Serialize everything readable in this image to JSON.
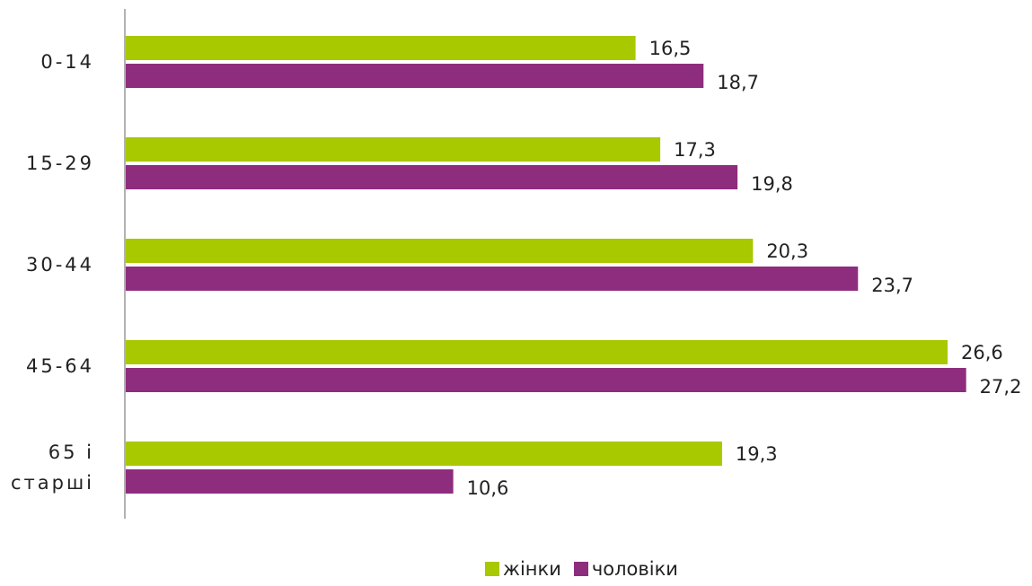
{
  "chart_data": {
    "type": "bar",
    "orientation": "horizontal",
    "categories": [
      [
        "0-14"
      ],
      [
        "15-29"
      ],
      [
        "30-44"
      ],
      [
        "45-64"
      ],
      [
        "65 і",
        "старші"
      ]
    ],
    "series": [
      {
        "name": "жінки",
        "color": "#a8c800",
        "values": [
          16.5,
          17.3,
          20.3,
          26.6,
          19.3
        ],
        "labels": [
          "16,5",
          "17,3",
          "20,3",
          "26,6",
          "19,3"
        ]
      },
      {
        "name": "чоловіки",
        "color": "#8e2d7d",
        "values": [
          18.7,
          19.8,
          23.7,
          27.2,
          10.6
        ],
        "labels": [
          "18,7",
          "19,8",
          "23,7",
          "27,2",
          "10,6"
        ]
      }
    ],
    "xlim": [
      0,
      30
    ],
    "grid": false,
    "legend_position": "bottom"
  }
}
